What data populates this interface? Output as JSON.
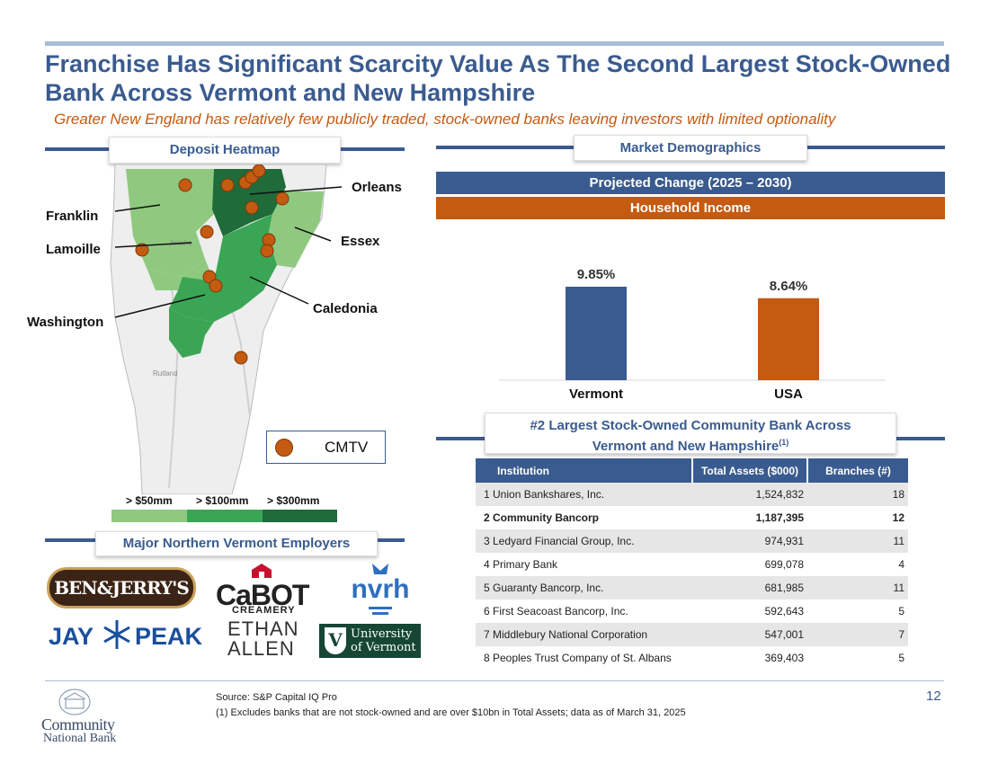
{
  "header": {
    "title": "Franchise Has Significant Scarcity Value As The Second Largest Stock-Owned Bank Across Vermont and New Hampshire",
    "subtitle": "Greater New England has relatively few publicly traded, stock-owned banks leaving investors with limited optionality"
  },
  "heatmap": {
    "section_title": "Deposit Heatmap",
    "counties": [
      "Franklin",
      "Lamoille",
      "Washington",
      "Orleans",
      "Essex",
      "Caledonia"
    ],
    "legend_label": "CMTV",
    "scale": [
      "> $50mm",
      "> $100mm",
      "> $300mm"
    ],
    "scale_colors": [
      "#8fc97f",
      "#3aa655",
      "#1f6b3a"
    ]
  },
  "employers": {
    "section_title": "Major Northern Vermont Employers",
    "logos": [
      "BEN&JERRY'S",
      "CaBOT",
      "CREAMERY",
      "nvrh",
      "JAY",
      "PEAK",
      "ETHAN",
      "ALLEN",
      "University",
      "of Vermont"
    ]
  },
  "demographics": {
    "section_title": "Market Demographics",
    "banner1": "Projected Change (2025 – 2030)",
    "banner2": "Household Income"
  },
  "chart_data": {
    "type": "bar",
    "categories": [
      "Vermont",
      "USA"
    ],
    "values": [
      9.85,
      8.64
    ],
    "value_labels": [
      "9.85%",
      "8.64%"
    ],
    "colors": [
      "#3a5b8f",
      "#c55a11"
    ],
    "title": "Household Income"
  },
  "ranking": {
    "section_title_line1": "#2 Largest Stock-Owned Community Bank Across",
    "section_title_line2": "Vermont and New Hampshire",
    "footnote_ref": "(1)",
    "columns": [
      "Institution",
      "Total Assets ($000)",
      "Branches (#)"
    ],
    "rows": [
      {
        "name": "1 Union Bankshares, Inc.",
        "assets": "1,524,832",
        "branches": "18"
      },
      {
        "name": "2 Community Bancorp",
        "assets": "1,187,395",
        "branches": "12"
      },
      {
        "name": "3 Ledyard Financial Group, Inc.",
        "assets": "974,931",
        "branches": "11"
      },
      {
        "name": "4 Primary Bank",
        "assets": "699,078",
        "branches": "4"
      },
      {
        "name": "5 Guaranty Bancorp, Inc.",
        "assets": "681,985",
        "branches": "11"
      },
      {
        "name": "6 First Seacoast Bancorp, Inc.",
        "assets": "592,643",
        "branches": "5"
      },
      {
        "name": "7 Middlebury National Corporation",
        "assets": "547,001",
        "branches": "7"
      },
      {
        "name": "8 Peoples Trust Company of St. Albans",
        "assets": "369,403",
        "branches": "5"
      }
    ]
  },
  "footer": {
    "source": "Source: S&P Capital IQ Pro",
    "note": "(1) Excludes banks that are not stock-owned and are over $10bn in Total Assets; data as of March 31, 2025",
    "page_number": "12",
    "logo_line1": "Community",
    "logo_line2": "National Bank"
  }
}
